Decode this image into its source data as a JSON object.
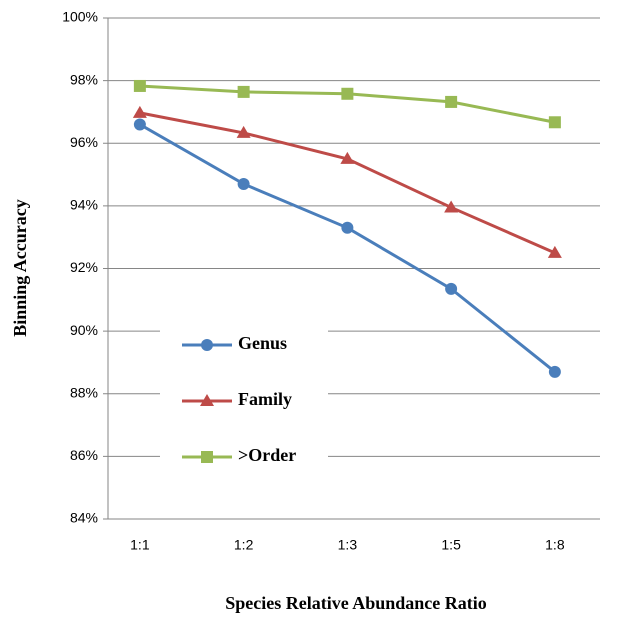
{
  "chart_data": {
    "type": "line",
    "x_label": "Species Relative Abundance Ratio",
    "y_label": "Binning Accuracy",
    "categories": [
      "1:1",
      "1:2",
      "1:3",
      "1:5",
      "1:8"
    ],
    "series": [
      {
        "name": "Genus",
        "color": "#4a7ebb",
        "marker": "circle",
        "values": [
          96.6,
          94.7,
          93.3,
          91.35,
          88.7
        ]
      },
      {
        "name": "Family",
        "color": "#be4b48",
        "marker": "triangle",
        "values": [
          96.97,
          96.33,
          95.5,
          93.95,
          92.5
        ]
      },
      {
        "name": ">Order",
        "color": "#98b954",
        "marker": "square",
        "values": [
          97.83,
          97.64,
          97.58,
          97.32,
          96.67
        ]
      }
    ],
    "ylim": [
      84,
      100
    ],
    "yticks": [
      {
        "value": 84,
        "label": "84%"
      },
      {
        "value": 86,
        "label": "86%"
      },
      {
        "value": 88,
        "label": "88%"
      },
      {
        "value": 90,
        "label": "90%"
      },
      {
        "value": 92,
        "label": "92%"
      },
      {
        "value": 94,
        "label": "94%"
      },
      {
        "value": 96,
        "label": "96%"
      },
      {
        "value": 98,
        "label": "98%"
      },
      {
        "value": 100,
        "label": "100%"
      }
    ],
    "grid": true,
    "legend": "left"
  }
}
